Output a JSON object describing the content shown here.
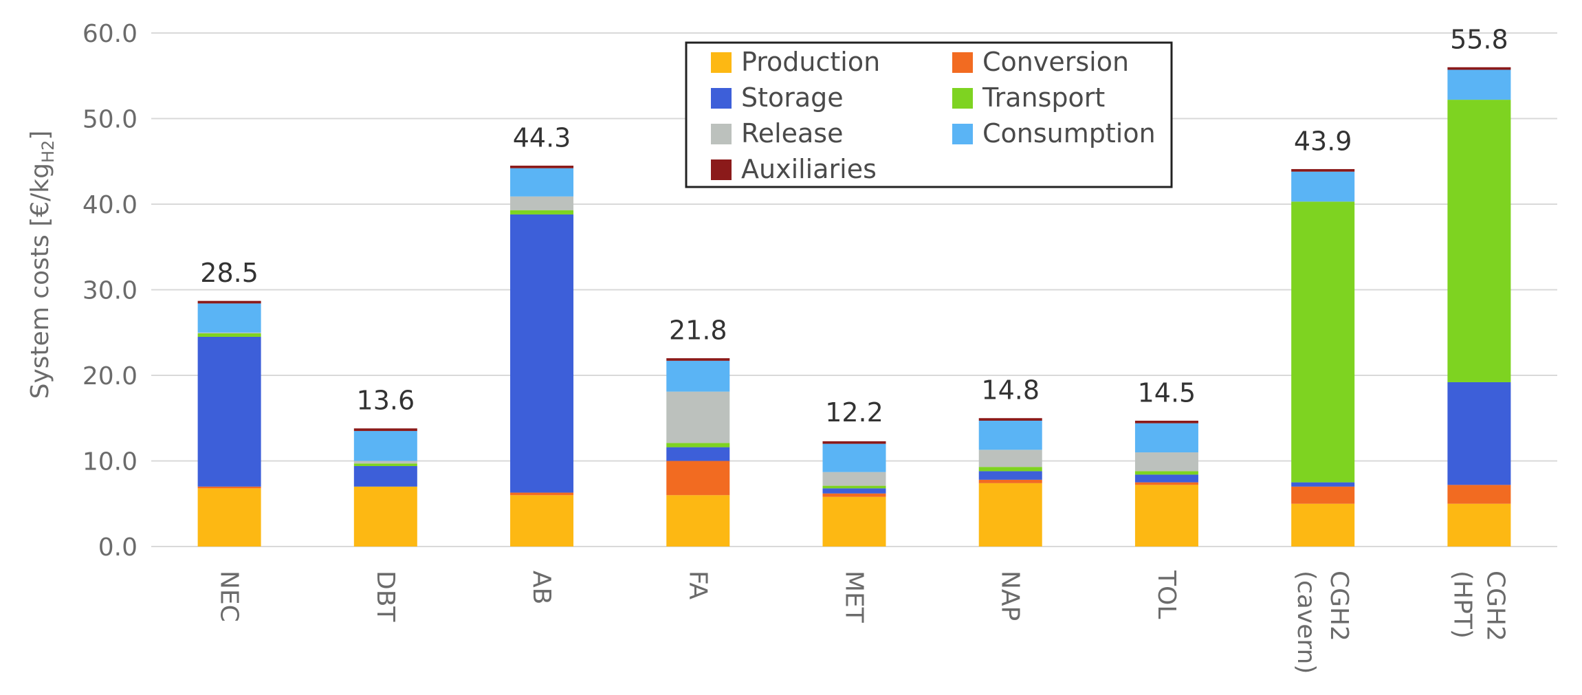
{
  "chart_data": {
    "type": "bar",
    "stacked": true,
    "ylabel": "System costs [€/kg",
    "ylabel_sub": "H2",
    "ylabel_suffix": "]",
    "ylim": [
      0,
      60
    ],
    "yticks": [
      0,
      10,
      20,
      30,
      40,
      50,
      60
    ],
    "ytick_labels": [
      "0.0",
      "10.0",
      "20.0",
      "30.0",
      "40.0",
      "50.0",
      "60.0"
    ],
    "grid": true,
    "legend_position": "top-center",
    "categories": [
      [
        "NEC"
      ],
      [
        "DBT"
      ],
      [
        "AB"
      ],
      [
        "FA"
      ],
      [
        "MET"
      ],
      [
        "NAP"
      ],
      [
        "TOL"
      ],
      [
        "CGH2",
        "(cavern)"
      ],
      [
        "CGH2",
        "(HPT)"
      ]
    ],
    "totals": [
      28.5,
      13.6,
      44.3,
      21.8,
      12.2,
      14.8,
      14.5,
      43.9,
      55.8
    ],
    "total_labels": [
      "28.5",
      "13.6",
      "44.3",
      "21.8",
      "12.2",
      "14.8",
      "14.5",
      "43.9",
      "55.8"
    ],
    "series": [
      {
        "name": "Production",
        "color": "#FDB813",
        "values": [
          6.8,
          7.0,
          6.0,
          6.0,
          5.8,
          7.4,
          7.2,
          5.0,
          5.0
        ]
      },
      {
        "name": "Conversion",
        "color": "#F26B21",
        "values": [
          0.2,
          0.0,
          0.3,
          4.0,
          0.4,
          0.4,
          0.3,
          2.0,
          2.2
        ]
      },
      {
        "name": "Storage",
        "color": "#3D5FD9",
        "values": [
          17.5,
          2.4,
          32.5,
          1.6,
          0.6,
          1.0,
          0.9,
          0.5,
          12.0
        ]
      },
      {
        "name": "Transport",
        "color": "#7ED321",
        "values": [
          0.4,
          0.3,
          0.5,
          0.5,
          0.3,
          0.5,
          0.4,
          32.8,
          33.0
        ]
      },
      {
        "name": "Release",
        "color": "#BCC1BD",
        "values": [
          0.1,
          0.3,
          1.6,
          6.0,
          1.6,
          2.0,
          2.2,
          0.0,
          0.0
        ]
      },
      {
        "name": "Consumption",
        "color": "#5AB4F5",
        "values": [
          3.4,
          3.5,
          3.3,
          3.6,
          3.3,
          3.4,
          3.4,
          3.5,
          3.5
        ]
      },
      {
        "name": "Auxiliaries",
        "color": "#8B1A1A",
        "values": [
          0.3,
          0.3,
          0.3,
          0.3,
          0.3,
          0.3,
          0.3,
          0.3,
          0.3
        ]
      }
    ],
    "legend_order": [
      "Production",
      "Conversion",
      "Storage",
      "Transport",
      "Release",
      "Consumption",
      "Auxiliaries"
    ]
  }
}
